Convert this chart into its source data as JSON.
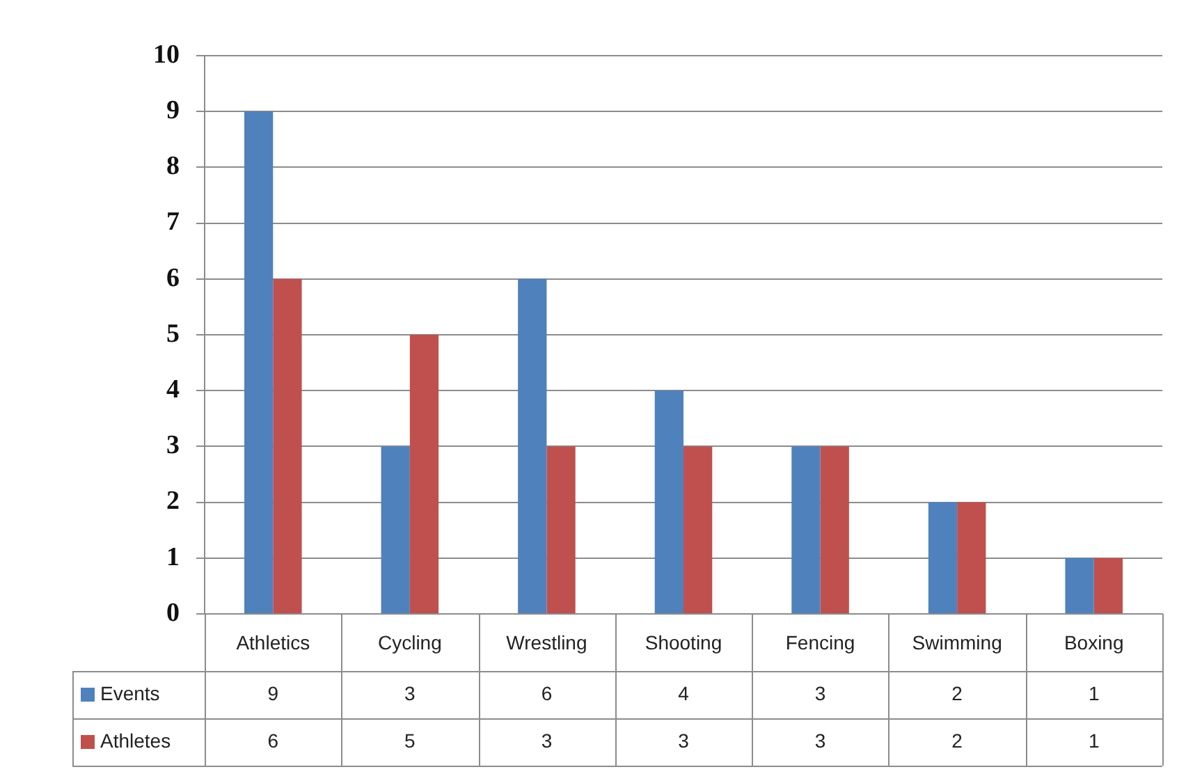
{
  "chart_data": {
    "type": "bar",
    "categories": [
      "Athletics",
      "Cycling",
      "Wrestling",
      "Shooting",
      "Fencing",
      "Swimming",
      "Boxing"
    ],
    "series": [
      {
        "name": "Events",
        "color": "#4f81bd",
        "values": [
          9,
          3,
          6,
          4,
          3,
          2,
          1
        ]
      },
      {
        "name": "Athletes",
        "color": "#c0504d",
        "values": [
          6,
          5,
          3,
          3,
          3,
          2,
          1
        ]
      }
    ],
    "ylim": [
      0,
      10
    ],
    "yticks": [
      0,
      1,
      2,
      3,
      4,
      5,
      6,
      7,
      8,
      9,
      10
    ],
    "grid": "y",
    "data_labels": true,
    "legend": "bottom"
  }
}
